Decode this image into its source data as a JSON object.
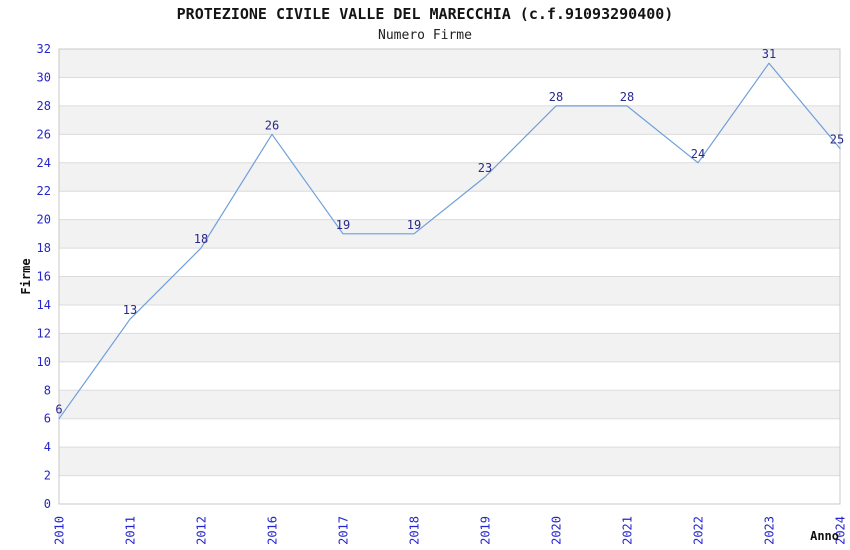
{
  "chart_data": {
    "type": "line",
    "title": "PROTEZIONE CIVILE VALLE DEL MARECCHIA (c.f.91093290400)",
    "subtitle": "Numero Firme",
    "xlabel": "Anno",
    "ylabel": "Firme",
    "categories": [
      "2010",
      "2011",
      "2012",
      "2016",
      "2017",
      "2018",
      "2019",
      "2020",
      "2021",
      "2022",
      "2023",
      "2024"
    ],
    "values": [
      6,
      13,
      18,
      26,
      19,
      19,
      23,
      28,
      28,
      24,
      31,
      25
    ],
    "ylim": [
      0,
      32
    ],
    "ytick_step": 2,
    "grid": "horizontal-only",
    "legend": "none",
    "band_fill": "alternating every 2 units, gray bands at 2-4, 6-8, 10-12, 14-16, 18-20, 22-24, 26-28, 30-32",
    "colors": {
      "line": "#6f9fd9",
      "tick_label": "#2525cd",
      "data_label": "#29298c",
      "axis_title": "#111111",
      "band": "#f2f2f2",
      "gridline": "#dcdcdc",
      "border": "#c8c8c8",
      "background": "#ffffff"
    }
  }
}
